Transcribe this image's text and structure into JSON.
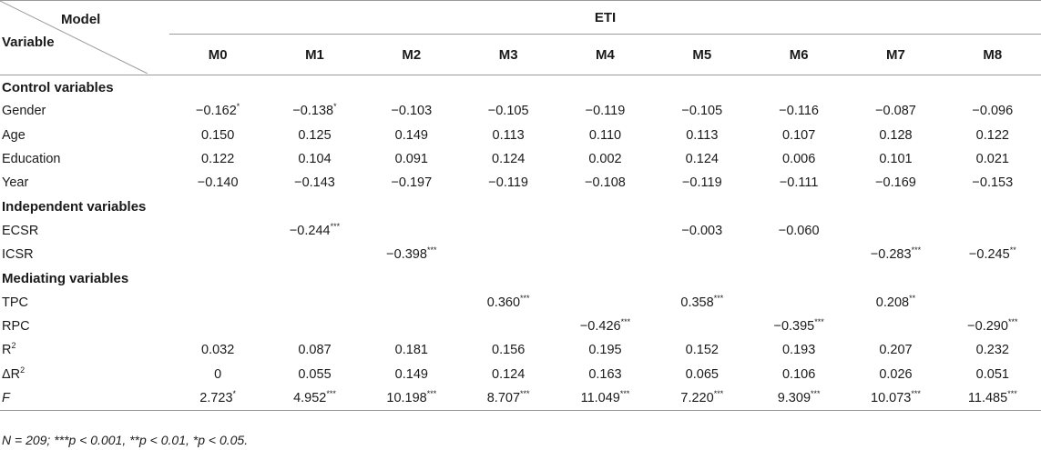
{
  "header": {
    "model_label": "Model",
    "variable_label": "Variable",
    "group_label": "ETI",
    "models": [
      "M0",
      "M1",
      "M2",
      "M3",
      "M4",
      "M5",
      "M6",
      "M7",
      "M8"
    ]
  },
  "sections": [
    {
      "title": "Control variables",
      "rows": [
        {
          "name": "Gender",
          "values": [
            {
              "v": "−0.162",
              "s": "*"
            },
            {
              "v": "−0.138",
              "s": "*"
            },
            {
              "v": "−0.103",
              "s": ""
            },
            {
              "v": "−0.105",
              "s": ""
            },
            {
              "v": "−0.119",
              "s": ""
            },
            {
              "v": "−0.105",
              "s": ""
            },
            {
              "v": "−0.116",
              "s": ""
            },
            {
              "v": "−0.087",
              "s": ""
            },
            {
              "v": "−0.096",
              "s": ""
            }
          ]
        },
        {
          "name": "Age",
          "values": [
            {
              "v": "0.150",
              "s": ""
            },
            {
              "v": "0.125",
              "s": ""
            },
            {
              "v": "0.149",
              "s": ""
            },
            {
              "v": "0.113",
              "s": ""
            },
            {
              "v": "0.110",
              "s": ""
            },
            {
              "v": "0.113",
              "s": ""
            },
            {
              "v": "0.107",
              "s": ""
            },
            {
              "v": "0.128",
              "s": ""
            },
            {
              "v": "0.122",
              "s": ""
            }
          ]
        },
        {
          "name": "Education",
          "values": [
            {
              "v": "0.122",
              "s": ""
            },
            {
              "v": "0.104",
              "s": ""
            },
            {
              "v": "0.091",
              "s": ""
            },
            {
              "v": "0.124",
              "s": ""
            },
            {
              "v": "0.002",
              "s": ""
            },
            {
              "v": "0.124",
              "s": ""
            },
            {
              "v": "0.006",
              "s": ""
            },
            {
              "v": "0.101",
              "s": ""
            },
            {
              "v": "0.021",
              "s": ""
            }
          ]
        },
        {
          "name": "Year",
          "values": [
            {
              "v": "−0.140",
              "s": ""
            },
            {
              "v": "−0.143",
              "s": ""
            },
            {
              "v": "−0.197",
              "s": ""
            },
            {
              "v": "−0.119",
              "s": ""
            },
            {
              "v": "−0.108",
              "s": ""
            },
            {
              "v": "−0.119",
              "s": ""
            },
            {
              "v": "−0.111",
              "s": ""
            },
            {
              "v": "−0.169",
              "s": ""
            },
            {
              "v": "−0.153",
              "s": ""
            }
          ]
        }
      ]
    },
    {
      "title": "Independent variables",
      "rows": [
        {
          "name": "ECSR",
          "values": [
            {
              "v": "",
              "s": ""
            },
            {
              "v": "−0.244",
              "s": "***"
            },
            {
              "v": "",
              "s": ""
            },
            {
              "v": "",
              "s": ""
            },
            {
              "v": "",
              "s": ""
            },
            {
              "v": "−0.003",
              "s": ""
            },
            {
              "v": "−0.060",
              "s": ""
            },
            {
              "v": "",
              "s": ""
            },
            {
              "v": "",
              "s": ""
            }
          ]
        },
        {
          "name": "ICSR",
          "values": [
            {
              "v": "",
              "s": ""
            },
            {
              "v": "",
              "s": ""
            },
            {
              "v": "−0.398",
              "s": "***"
            },
            {
              "v": "",
              "s": ""
            },
            {
              "v": "",
              "s": ""
            },
            {
              "v": "",
              "s": ""
            },
            {
              "v": "",
              "s": ""
            },
            {
              "v": "−0.283",
              "s": "***"
            },
            {
              "v": "−0.245",
              "s": "**"
            }
          ]
        }
      ]
    },
    {
      "title": "Mediating variables",
      "rows": [
        {
          "name": "TPC",
          "values": [
            {
              "v": "",
              "s": ""
            },
            {
              "v": "",
              "s": ""
            },
            {
              "v": "",
              "s": ""
            },
            {
              "v": "0.360",
              "s": "***"
            },
            {
              "v": "",
              "s": ""
            },
            {
              "v": "0.358",
              "s": "***"
            },
            {
              "v": "",
              "s": ""
            },
            {
              "v": "0.208",
              "s": "**"
            },
            {
              "v": "",
              "s": ""
            }
          ]
        },
        {
          "name": "RPC",
          "values": [
            {
              "v": "",
              "s": ""
            },
            {
              "v": "",
              "s": ""
            },
            {
              "v": "",
              "s": ""
            },
            {
              "v": "",
              "s": ""
            },
            {
              "v": "−0.426",
              "s": "***"
            },
            {
              "v": "",
              "s": ""
            },
            {
              "v": "−0.395",
              "s": "***"
            },
            {
              "v": "",
              "s": ""
            },
            {
              "v": "−0.290",
              "s": "***"
            }
          ]
        },
        {
          "name": "R",
          "name_sup": "2",
          "values": [
            {
              "v": "0.032",
              "s": ""
            },
            {
              "v": "0.087",
              "s": ""
            },
            {
              "v": "0.181",
              "s": ""
            },
            {
              "v": "0.156",
              "s": ""
            },
            {
              "v": "0.195",
              "s": ""
            },
            {
              "v": "0.152",
              "s": ""
            },
            {
              "v": "0.193",
              "s": ""
            },
            {
              "v": "0.207",
              "s": ""
            },
            {
              "v": "0.232",
              "s": ""
            }
          ]
        },
        {
          "name": "ΔR",
          "name_sup": "2",
          "values": [
            {
              "v": "0",
              "s": ""
            },
            {
              "v": "0.055",
              "s": ""
            },
            {
              "v": "0.149",
              "s": ""
            },
            {
              "v": "0.124",
              "s": ""
            },
            {
              "v": "0.163",
              "s": ""
            },
            {
              "v": "0.065",
              "s": ""
            },
            {
              "v": "0.106",
              "s": ""
            },
            {
              "v": "0.026",
              "s": ""
            },
            {
              "v": "0.051",
              "s": ""
            }
          ]
        },
        {
          "name": "F",
          "italic": true,
          "values": [
            {
              "v": "2.723",
              "s": "*"
            },
            {
              "v": "4.952",
              "s": "***"
            },
            {
              "v": "10.198",
              "s": "***"
            },
            {
              "v": "8.707",
              "s": "***"
            },
            {
              "v": "11.049",
              "s": "***"
            },
            {
              "v": "7.220",
              "s": "***"
            },
            {
              "v": "9.309",
              "s": "***"
            },
            {
              "v": "10.073",
              "s": "***"
            },
            {
              "v": "11.485",
              "s": "***"
            }
          ]
        }
      ]
    }
  ],
  "footnote": "N = 209; ***p < 0.001, **p < 0.01, *p < 0.05."
}
